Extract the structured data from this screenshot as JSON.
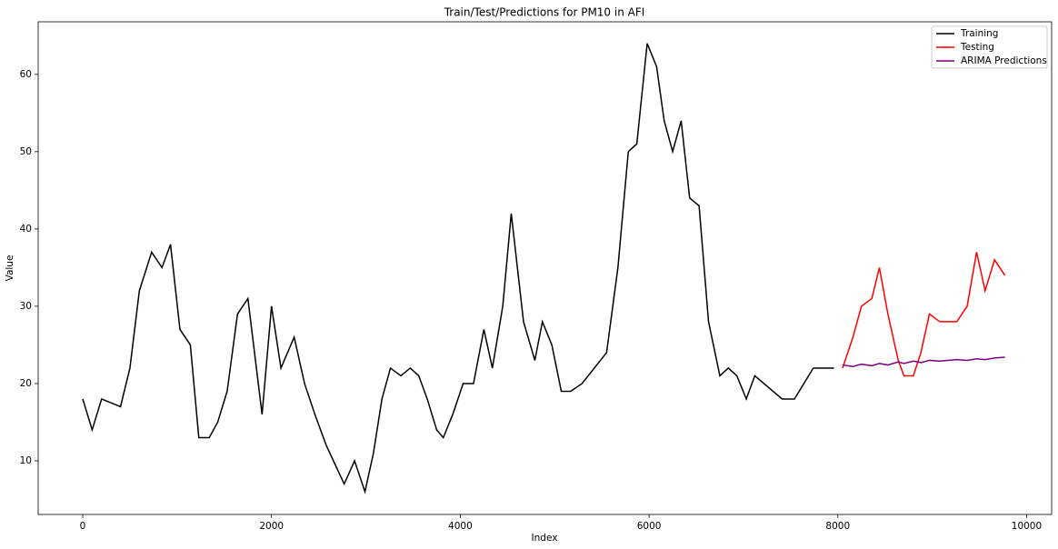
{
  "chart_data": {
    "type": "line",
    "title": "Train/Test/Predictions for PM10 in AFI",
    "xlabel": "Index",
    "ylabel": "Value",
    "xlim": [
      -472,
      10265
    ],
    "ylim": [
      3.06,
      66.8
    ],
    "xticks": [
      0,
      2000,
      4000,
      6000,
      8000,
      10000
    ],
    "yticks": [
      10,
      20,
      30,
      40,
      50,
      60
    ],
    "legend": "upper right",
    "series": [
      {
        "name": "Training",
        "color": "#000000",
        "x": [
          0,
          100,
          200,
          400,
          500,
          600,
          730,
          840,
          930,
          1030,
          1140,
          1230,
          1340,
          1430,
          1530,
          1640,
          1750,
          1900,
          2000,
          2100,
          2240,
          2350,
          2460,
          2580,
          2770,
          2880,
          2990,
          3080,
          3170,
          3260,
          3370,
          3470,
          3560,
          3650,
          3750,
          3820,
          3920,
          4030,
          4140,
          4250,
          4340,
          4450,
          4540,
          4670,
          4790,
          4870,
          4970,
          5070,
          5170,
          5290,
          5550,
          5670,
          5780,
          5870,
          5980,
          6080,
          6160,
          6250,
          6340,
          6430,
          6530,
          6630,
          6750,
          6840,
          6930,
          7030,
          7120,
          7410,
          7540,
          7740,
          7960
        ],
        "values": [
          18,
          14,
          18,
          17,
          22,
          32,
          37,
          35,
          38,
          27,
          25,
          13,
          13,
          15,
          19,
          29,
          31,
          16,
          30,
          22,
          26,
          20,
          16,
          12,
          7,
          10,
          6,
          11,
          18,
          22,
          21,
          22,
          21,
          18,
          14,
          13,
          16,
          20,
          20,
          27,
          22,
          30,
          42,
          28,
          23,
          28,
          25,
          19,
          19,
          20,
          24,
          35,
          50,
          51,
          64,
          61,
          54,
          50,
          54,
          44,
          43,
          28,
          21,
          22,
          21,
          18,
          21,
          18,
          18,
          22,
          22
        ]
      },
      {
        "name": "Testing",
        "color": "#ff0000",
        "x": [
          8050,
          8160,
          8250,
          8360,
          8440,
          8530,
          8640,
          8700,
          8800,
          8880,
          8970,
          9080,
          9260,
          9370,
          9470,
          9560,
          9660,
          9770
        ],
        "values": [
          22,
          26,
          30,
          31,
          35,
          29,
          23,
          21,
          21,
          24,
          29,
          28,
          28,
          30,
          37,
          32,
          36,
          34
        ]
      },
      {
        "name": "ARIMA Predictions",
        "color": "#800080",
        "x": [
          8050,
          8160,
          8250,
          8360,
          8440,
          8530,
          8640,
          8700,
          8800,
          8880,
          8970,
          9080,
          9260,
          9370,
          9470,
          9560,
          9660,
          9770
        ],
        "values": [
          22.4,
          22.2,
          22.5,
          22.3,
          22.6,
          22.4,
          22.8,
          22.6,
          22.9,
          22.7,
          23.0,
          22.9,
          23.1,
          23.0,
          23.2,
          23.1,
          23.3,
          23.4
        ]
      }
    ]
  }
}
